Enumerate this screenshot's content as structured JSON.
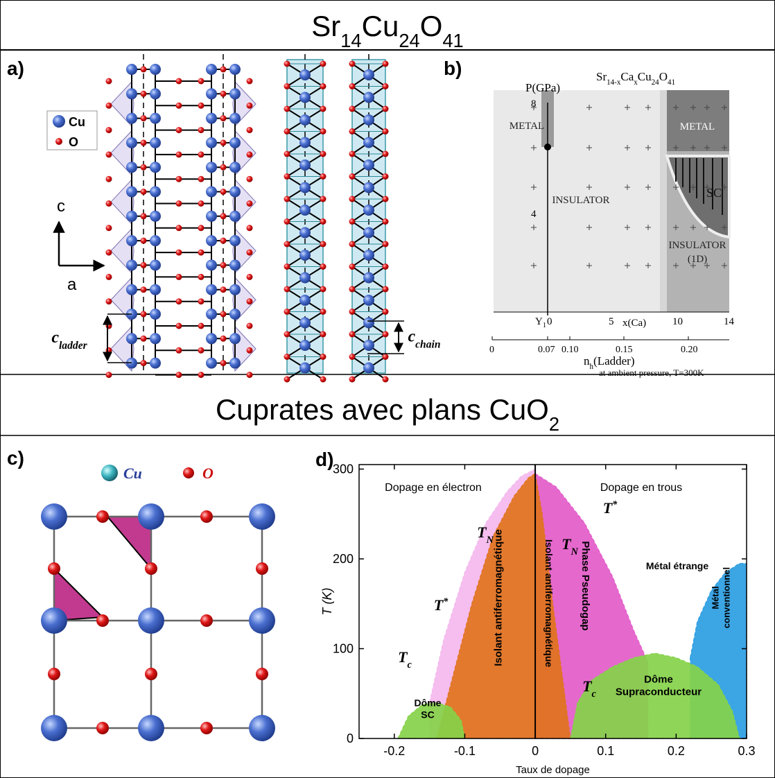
{
  "sections": [
    {
      "title": [
        "Sr",
        "14",
        "Cu",
        "24",
        "O",
        "41"
      ]
    },
    {
      "title": [
        "Cuprates avec plans CuO",
        "2"
      ]
    }
  ],
  "panel_a": {
    "label": "a)",
    "legend": [
      "Cu",
      "O"
    ],
    "axes": [
      "c",
      "a"
    ],
    "dimensions": [
      [
        "c",
        "ladder"
      ],
      [
        "c",
        "chain"
      ]
    ]
  },
  "panel_b": {
    "label": "b)",
    "title": [
      "Sr",
      "14-x",
      "Ca",
      "x",
      "Cu",
      "24",
      "O",
      "41"
    ],
    "y_label": "P(GPa)",
    "y_ticks": [
      "8",
      "4"
    ],
    "x_top_ticks": [
      "Y",
      "1",
      "0",
      "5",
      "10",
      "14"
    ],
    "x_top_label": "x(Ca)",
    "x_bottom_ticks": [
      "0",
      "0.07",
      "0.10",
      "0.15",
      "0.20"
    ],
    "x_bottom_label": [
      "n",
      "h",
      "(Ladder)"
    ],
    "x_bottom_note": "at ambient pressure, T=300K",
    "regions": [
      "METAL",
      "METAL",
      "INSULATOR",
      "SC",
      "INSULATOR",
      "(1D)"
    ]
  },
  "panel_c": {
    "label": "c)",
    "legend": [
      "Cu",
      "O"
    ]
  },
  "chart_data": {
    "type": "area",
    "label": "d)",
    "xlabel": "Taux de dopage",
    "ylabel": "T (K)",
    "xlim": [
      -0.25,
      0.3
    ],
    "ylim": [
      0,
      305
    ],
    "xticks": [
      -0.2,
      -0.1,
      0,
      0.1,
      0.2,
      0.3
    ],
    "yticks": [
      0,
      100,
      200,
      300
    ],
    "annotations": [
      "Dopage en électron",
      "Dopage en trous",
      "Métal étrange",
      [
        "T",
        "N"
      ],
      [
        "T",
        "N"
      ],
      [
        "T",
        "*"
      ],
      [
        "T",
        "*"
      ],
      [
        "T",
        "c"
      ],
      [
        "T",
        "c"
      ]
    ],
    "series": [
      {
        "color": "#f4b8ee",
        "x": [
          -0.15,
          -0.13,
          -0.1,
          -0.07,
          -0.04,
          -0.02,
          0
        ],
        "values": [
          40,
          110,
          185,
          240,
          275,
          292,
          300
        ]
      },
      {
        "label": [
          "Phase Pseudogap"
        ],
        "color": "#e35bc9",
        "x": [
          0,
          0.03,
          0.07,
          0.11,
          0.14,
          0.16
        ],
        "values": [
          295,
          280,
          240,
          180,
          120,
          85
        ]
      },
      {
        "label": [
          "Métal",
          "conventionnel"
        ],
        "color": "#2b9de2",
        "x": [
          0.22,
          0.23,
          0.25,
          0.27,
          0.29,
          0.3
        ],
        "values": [
          90,
          130,
          165,
          185,
          195,
          195
        ]
      },
      {
        "label": [
          "Isolant antiferromagnétique"
        ],
        "color": "#e0731c",
        "x": [
          -0.14,
          -0.12,
          -0.09,
          -0.06,
          -0.03,
          -0.01,
          0
        ],
        "values": [
          0,
          60,
          150,
          225,
          270,
          290,
          295
        ]
      },
      {
        "label": [
          "Isolant antiferromagnétique"
        ],
        "color": "#e0731c",
        "x": [
          0,
          0.01,
          0.025,
          0.04,
          0.05
        ],
        "values": [
          295,
          250,
          150,
          60,
          0
        ]
      },
      {
        "label": [
          "Dôme",
          "Supraconducteur"
        ],
        "color": "#86d24a",
        "x": [
          0.05,
          0.06,
          0.08,
          0.11,
          0.14,
          0.17,
          0.2,
          0.23,
          0.26,
          0.28,
          0.29
        ],
        "values": [
          0,
          40,
          65,
          80,
          90,
          95,
          90,
          80,
          60,
          30,
          0
        ]
      },
      {
        "label": [
          "Dôme",
          "SC"
        ],
        "color": "#86d24a",
        "x": [
          -0.195,
          -0.18,
          -0.16,
          -0.14,
          -0.12,
          -0.105,
          -0.1
        ],
        "values": [
          0,
          25,
          38,
          40,
          35,
          20,
          0
        ]
      }
    ]
  }
}
